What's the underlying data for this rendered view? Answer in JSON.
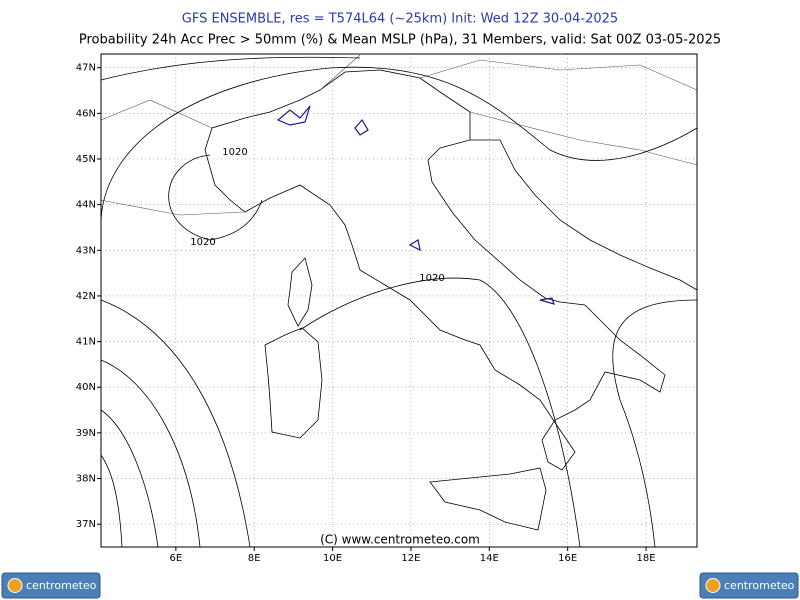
{
  "header": {
    "title": "GFS ENSEMBLE, res = T574L64 (~25km)   Init: Wed 12Z 30-04-2025",
    "subtitle": "Probability 24h Acc Prec > 50mm (%) & Mean MSLP (hPa), 31 Members, valid: Sat 00Z 03-05-2025"
  },
  "map": {
    "lonlim": [
      4.09,
      19.3
    ],
    "latlim": [
      36.5,
      47.3
    ],
    "lon_ticks": [
      {
        "value": 6,
        "label": "6E"
      },
      {
        "value": 8,
        "label": "8E"
      },
      {
        "value": 10,
        "label": "10E"
      },
      {
        "value": 12,
        "label": "12E"
      },
      {
        "value": 14,
        "label": "14E"
      },
      {
        "value": 16,
        "label": "16E"
      },
      {
        "value": 18,
        "label": "18E"
      }
    ],
    "lat_ticks": [
      {
        "value": 37,
        "label": "37N"
      },
      {
        "value": 38,
        "label": "38N"
      },
      {
        "value": 39,
        "label": "39N"
      },
      {
        "value": 40,
        "label": "40N"
      },
      {
        "value": 41,
        "label": "41N"
      },
      {
        "value": 42,
        "label": "42N"
      },
      {
        "value": 43,
        "label": "43N"
      },
      {
        "value": 44,
        "label": "44N"
      },
      {
        "value": 45,
        "label": "45N"
      },
      {
        "value": 46,
        "label": "46N"
      },
      {
        "value": 47,
        "label": "47N"
      }
    ],
    "isobar_labels": [
      "1020",
      "1020",
      "1020"
    ],
    "copyright": "(C) www.centrometeo.com"
  },
  "footer": {
    "logo_left": "centrometeo",
    "logo_right": "centrometeo"
  }
}
